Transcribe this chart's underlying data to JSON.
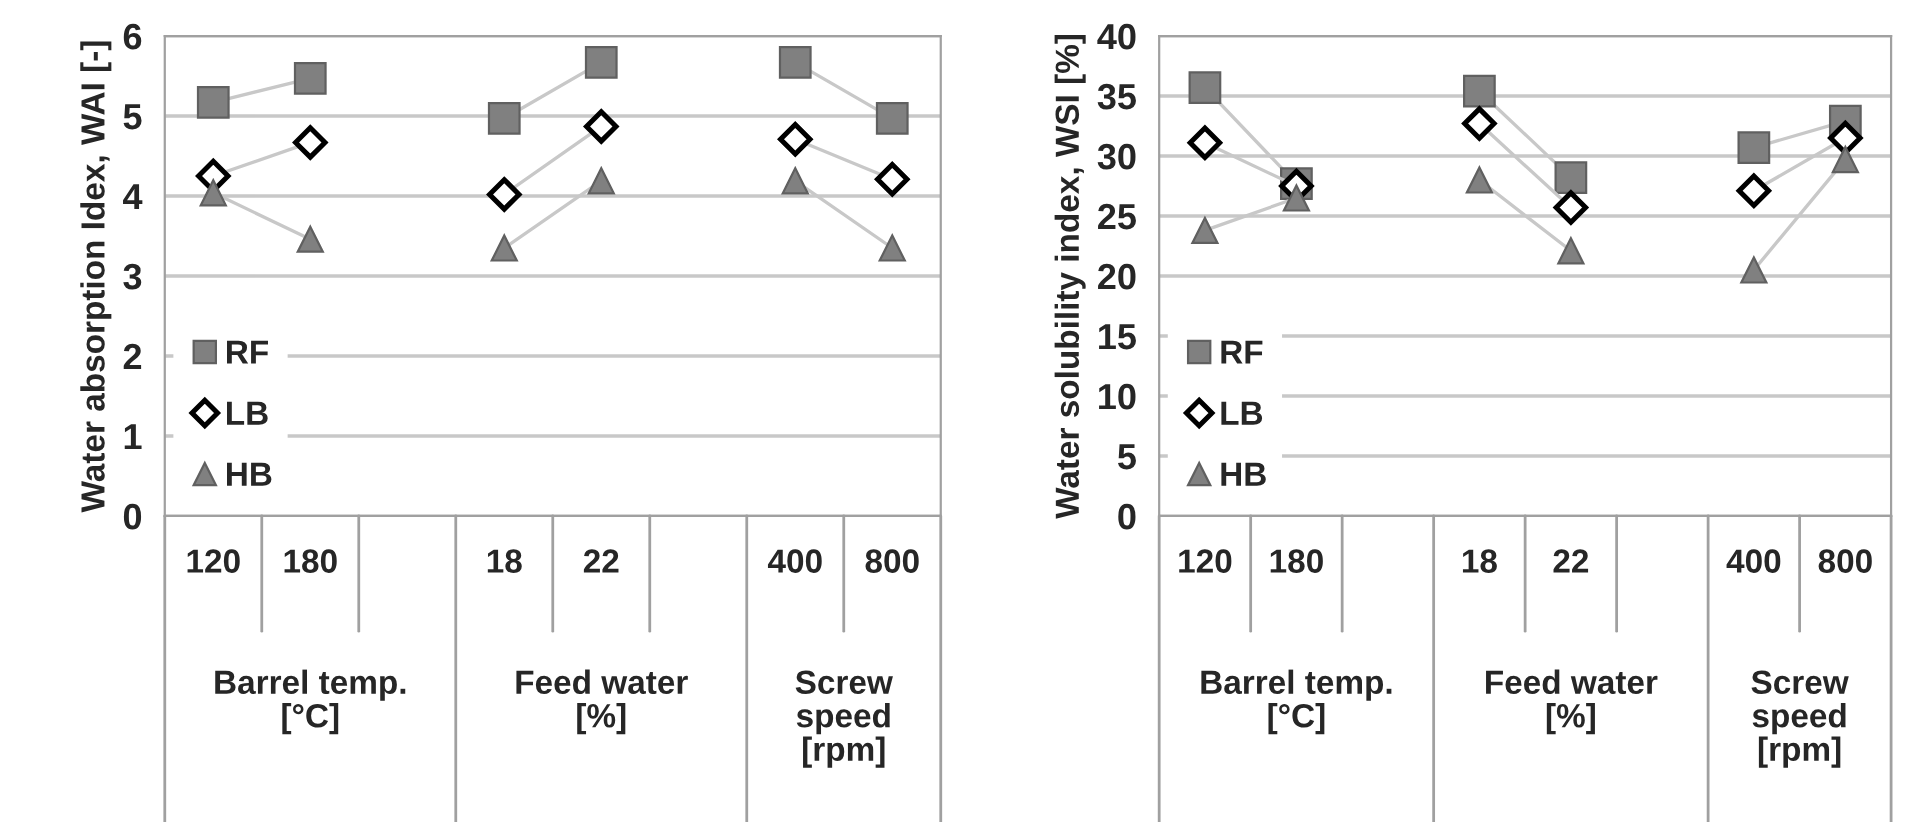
{
  "chart_data": [
    {
      "type": "line",
      "ylabel": "Water absorption Idex, WAI [-]",
      "categories": [
        "120",
        "180",
        null,
        "18",
        "22",
        null,
        "400",
        "800"
      ],
      "ylim": [
        0,
        6
      ],
      "yticks": [
        0,
        1,
        2,
        3,
        4,
        5,
        6
      ],
      "grid": "y",
      "legend": "bottom left",
      "annotations": [
        "Barrel temp.\n[°C]",
        "Feed water\n[%]",
        "Screw\nspeed\n[rpm]"
      ],
      "series": [
        {
          "name": "RF",
          "color": "#808080",
          "marker": "square",
          "values": [
            5.17,
            5.47,
            null,
            4.97,
            5.67,
            null,
            5.67,
            4.97
          ]
        },
        {
          "name": "LB",
          "color": "#ffffff",
          "marker": "diamond",
          "values": [
            4.25,
            4.67,
            null,
            4.02,
            4.87,
            null,
            4.71,
            4.21
          ]
        },
        {
          "name": "HB",
          "color": "#808080",
          "marker": "triangle",
          "values": [
            4.04,
            3.46,
            null,
            3.35,
            4.19,
            null,
            4.19,
            3.35
          ]
        }
      ]
    },
    {
      "type": "line",
      "ylabel": "Water solubility index, WSI [%]",
      "categories": [
        "120",
        "180",
        null,
        "18",
        "22",
        null,
        "400",
        "800"
      ],
      "ylim": [
        0,
        40
      ],
      "yticks": [
        0,
        5,
        10,
        15,
        20,
        25,
        30,
        35,
        40
      ],
      "grid": "y",
      "legend": "bottom left",
      "annotations": [
        "Barrel temp.\n[°C]",
        "Feed water\n[%]",
        "Screw\nspeed\n[rpm]"
      ],
      "series": [
        {
          "name": "RF",
          "color": "#808080",
          "marker": "square",
          "values": [
            35.7,
            27.7,
            null,
            35.4,
            28.2,
            null,
            30.7,
            32.9
          ]
        },
        {
          "name": "LB",
          "color": "#ffffff",
          "marker": "diamond",
          "values": [
            31.1,
            27.5,
            null,
            32.7,
            25.7,
            null,
            27.1,
            31.5
          ]
        },
        {
          "name": "HB",
          "color": "#808080",
          "marker": "triangle",
          "values": [
            23.8,
            26.5,
            null,
            28.0,
            22.1,
            null,
            20.5,
            29.7
          ]
        }
      ]
    }
  ]
}
